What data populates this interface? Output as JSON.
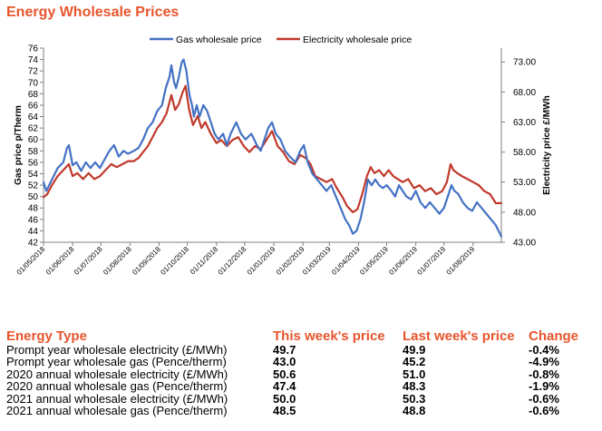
{
  "title": "Energy Wholesale Prices",
  "chart_data": {
    "type": "line",
    "title": "Energy Wholesale Prices",
    "y_left_label": "Gas price p/Therm",
    "y_right_label": "Electricity price £/MWh",
    "y_left_range": [
      42,
      76
    ],
    "y_left_ticks": [
      "42",
      "44",
      "46",
      "48",
      "50",
      "52",
      "54",
      "56",
      "58",
      "60",
      "62",
      "64",
      "66",
      "68",
      "70",
      "72",
      "74",
      "76"
    ],
    "y_right_range": [
      43,
      75.3
    ],
    "y_right_ticks": [
      "43.00",
      "48.00",
      "53.00",
      "58.00",
      "63.00",
      "68.00",
      "73.00"
    ],
    "x_range": [
      "2018-05-01",
      "2019-08-31"
    ],
    "x_ticks": [
      "01/05/2018",
      "01/06/2018",
      "01/07/2018",
      "01/08/2018",
      "01/09/2018",
      "01/10/2018",
      "01/11/2018",
      "01/12/2018",
      "01/01/2019",
      "01/02/2019",
      "01/03/2019",
      "01/04/2019",
      "01/05/2019",
      "01/06/2019",
      "01/07/2019",
      "01/08/2019"
    ],
    "legend_position": "top",
    "grid": false,
    "series": [
      {
        "name": "Gas wholesale price",
        "axis": "left",
        "color": "#4472c4",
        "points": [
          [
            "2018-05-01",
            52.5
          ],
          [
            "2018-05-04",
            51
          ],
          [
            "2018-05-10",
            53
          ],
          [
            "2018-05-16",
            55
          ],
          [
            "2018-05-22",
            56
          ],
          [
            "2018-05-26",
            58.5
          ],
          [
            "2018-05-28",
            59
          ],
          [
            "2018-06-01",
            55.5
          ],
          [
            "2018-06-05",
            56
          ],
          [
            "2018-06-10",
            54.5
          ],
          [
            "2018-06-15",
            56
          ],
          [
            "2018-06-20",
            55
          ],
          [
            "2018-06-25",
            56
          ],
          [
            "2018-06-30",
            55
          ],
          [
            "2018-07-05",
            56.5
          ],
          [
            "2018-07-10",
            58
          ],
          [
            "2018-07-15",
            59
          ],
          [
            "2018-07-20",
            57
          ],
          [
            "2018-07-25",
            58
          ],
          [
            "2018-07-30",
            57.5
          ],
          [
            "2018-08-05",
            58
          ],
          [
            "2018-08-10",
            58.5
          ],
          [
            "2018-08-15",
            60
          ],
          [
            "2018-08-20",
            62
          ],
          [
            "2018-08-25",
            63
          ],
          [
            "2018-08-30",
            65
          ],
          [
            "2018-09-04",
            66
          ],
          [
            "2018-09-08",
            69
          ],
          [
            "2018-09-12",
            71
          ],
          [
            "2018-09-14",
            73
          ],
          [
            "2018-09-17",
            70
          ],
          [
            "2018-09-19",
            69
          ],
          [
            "2018-09-22",
            71
          ],
          [
            "2018-09-25",
            73.5
          ],
          [
            "2018-09-27",
            74
          ],
          [
            "2018-09-30",
            72
          ],
          [
            "2018-10-03",
            68
          ],
          [
            "2018-10-06",
            66
          ],
          [
            "2018-10-08",
            64
          ],
          [
            "2018-10-11",
            66
          ],
          [
            "2018-10-14",
            64
          ],
          [
            "2018-10-18",
            66
          ],
          [
            "2018-10-22",
            65
          ],
          [
            "2018-10-26",
            63
          ],
          [
            "2018-10-30",
            61
          ],
          [
            "2018-11-03",
            60
          ],
          [
            "2018-11-08",
            61
          ],
          [
            "2018-11-12",
            59
          ],
          [
            "2018-11-16",
            61
          ],
          [
            "2018-11-22",
            63
          ],
          [
            "2018-11-27",
            61
          ],
          [
            "2018-12-02",
            60
          ],
          [
            "2018-12-08",
            61
          ],
          [
            "2018-12-14",
            59
          ],
          [
            "2018-12-18",
            58
          ],
          [
            "2018-12-22",
            60
          ],
          [
            "2018-12-26",
            62
          ],
          [
            "2018-12-30",
            63
          ],
          [
            "2019-01-03",
            61
          ],
          [
            "2019-01-08",
            60
          ],
          [
            "2019-01-13",
            58
          ],
          [
            "2019-01-18",
            57
          ],
          [
            "2019-01-24",
            56
          ],
          [
            "2019-01-29",
            58
          ],
          [
            "2019-02-02",
            59
          ],
          [
            "2019-02-06",
            56
          ],
          [
            "2019-02-11",
            54
          ],
          [
            "2019-02-16",
            53
          ],
          [
            "2019-02-21",
            52
          ],
          [
            "2019-02-26",
            51
          ],
          [
            "2019-03-03",
            52
          ],
          [
            "2019-03-08",
            50
          ],
          [
            "2019-03-13",
            48
          ],
          [
            "2019-03-18",
            46
          ],
          [
            "2019-03-22",
            45
          ],
          [
            "2019-03-26",
            43.5
          ],
          [
            "2019-03-30",
            44
          ],
          [
            "2019-04-03",
            46
          ],
          [
            "2019-04-07",
            49
          ],
          [
            "2019-04-11",
            53
          ],
          [
            "2019-04-15",
            52
          ],
          [
            "2019-04-19",
            53
          ],
          [
            "2019-04-23",
            52
          ],
          [
            "2019-04-27",
            51.5
          ],
          [
            "2019-05-01",
            52
          ],
          [
            "2019-05-06",
            51
          ],
          [
            "2019-05-10",
            50
          ],
          [
            "2019-05-14",
            52
          ],
          [
            "2019-05-18",
            51
          ],
          [
            "2019-05-22",
            50
          ],
          [
            "2019-05-27",
            49.5
          ],
          [
            "2019-06-01",
            51
          ],
          [
            "2019-06-06",
            49
          ],
          [
            "2019-06-11",
            48
          ],
          [
            "2019-06-16",
            49
          ],
          [
            "2019-06-21",
            48
          ],
          [
            "2019-06-26",
            47
          ],
          [
            "2019-07-01",
            48
          ],
          [
            "2019-07-05",
            50
          ],
          [
            "2019-07-09",
            52
          ],
          [
            "2019-07-12",
            51
          ],
          [
            "2019-07-16",
            50.5
          ],
          [
            "2019-07-21",
            49
          ],
          [
            "2019-07-26",
            48
          ],
          [
            "2019-07-31",
            47.5
          ],
          [
            "2019-08-05",
            49
          ],
          [
            "2019-08-10",
            48
          ],
          [
            "2019-08-15",
            47
          ],
          [
            "2019-08-20",
            46
          ],
          [
            "2019-08-25",
            45
          ],
          [
            "2019-08-28",
            44
          ],
          [
            "2019-08-31",
            43
          ]
        ]
      },
      {
        "name": "Electricity wholesale price",
        "axis": "right",
        "color": "#c0392b",
        "points": [
          [
            "2018-05-01",
            50.5
          ],
          [
            "2018-05-05",
            51
          ],
          [
            "2018-05-10",
            52.5
          ],
          [
            "2018-05-16",
            54
          ],
          [
            "2018-05-22",
            55
          ],
          [
            "2018-05-28",
            56
          ],
          [
            "2018-06-01",
            54
          ],
          [
            "2018-06-06",
            54.5
          ],
          [
            "2018-06-12",
            53.5
          ],
          [
            "2018-06-18",
            54.5
          ],
          [
            "2018-06-24",
            53.5
          ],
          [
            "2018-06-30",
            54
          ],
          [
            "2018-07-06",
            55
          ],
          [
            "2018-07-12",
            56
          ],
          [
            "2018-07-18",
            55.5
          ],
          [
            "2018-07-24",
            56
          ],
          [
            "2018-07-30",
            56.5
          ],
          [
            "2018-08-05",
            56.5
          ],
          [
            "2018-08-10",
            57
          ],
          [
            "2018-08-15",
            58
          ],
          [
            "2018-08-20",
            59
          ],
          [
            "2018-08-25",
            60.5
          ],
          [
            "2018-08-30",
            62
          ],
          [
            "2018-09-04",
            63
          ],
          [
            "2018-09-09",
            64.5
          ],
          [
            "2018-09-14",
            67.5
          ],
          [
            "2018-09-18",
            65
          ],
          [
            "2018-09-22",
            66
          ],
          [
            "2018-09-26",
            68
          ],
          [
            "2018-09-29",
            69
          ],
          [
            "2018-10-03",
            65
          ],
          [
            "2018-10-07",
            62.5
          ],
          [
            "2018-10-12",
            64
          ],
          [
            "2018-10-16",
            62
          ],
          [
            "2018-10-20",
            63
          ],
          [
            "2018-10-26",
            61
          ],
          [
            "2018-11-01",
            59.5
          ],
          [
            "2018-11-06",
            60
          ],
          [
            "2018-11-12",
            59
          ],
          [
            "2018-11-18",
            60
          ],
          [
            "2018-11-24",
            60.5
          ],
          [
            "2018-11-30",
            59
          ],
          [
            "2018-12-06",
            58
          ],
          [
            "2018-12-12",
            59
          ],
          [
            "2018-12-18",
            58.5
          ],
          [
            "2018-12-24",
            60
          ],
          [
            "2018-12-30",
            61.5
          ],
          [
            "2019-01-05",
            59
          ],
          [
            "2019-01-11",
            58
          ],
          [
            "2019-01-17",
            56.5
          ],
          [
            "2019-01-23",
            56
          ],
          [
            "2019-01-29",
            57.5
          ],
          [
            "2019-02-04",
            57
          ],
          [
            "2019-02-09",
            56
          ],
          [
            "2019-02-14",
            54
          ],
          [
            "2019-02-20",
            53.5
          ],
          [
            "2019-02-26",
            53
          ],
          [
            "2019-03-04",
            53.5
          ],
          [
            "2019-03-09",
            52
          ],
          [
            "2019-03-15",
            50.5
          ],
          [
            "2019-03-20",
            49
          ],
          [
            "2019-03-26",
            48
          ],
          [
            "2019-03-31",
            48.5
          ],
          [
            "2019-04-05",
            51
          ],
          [
            "2019-04-10",
            54
          ],
          [
            "2019-04-14",
            55.5
          ],
          [
            "2019-04-18",
            54.5
          ],
          [
            "2019-04-23",
            55
          ],
          [
            "2019-04-28",
            54
          ],
          [
            "2019-05-03",
            55
          ],
          [
            "2019-05-08",
            54
          ],
          [
            "2019-05-13",
            53.5
          ],
          [
            "2019-05-18",
            53
          ],
          [
            "2019-05-24",
            53.5
          ],
          [
            "2019-05-30",
            52
          ],
          [
            "2019-06-05",
            52.5
          ],
          [
            "2019-06-11",
            51.5
          ],
          [
            "2019-06-17",
            52
          ],
          [
            "2019-06-23",
            51
          ],
          [
            "2019-06-29",
            51.5
          ],
          [
            "2019-07-04",
            53
          ],
          [
            "2019-07-08",
            56
          ],
          [
            "2019-07-11",
            55
          ],
          [
            "2019-07-15",
            54.5
          ],
          [
            "2019-07-20",
            54
          ],
          [
            "2019-07-26",
            53.5
          ],
          [
            "2019-08-01",
            53
          ],
          [
            "2019-08-07",
            52.5
          ],
          [
            "2019-08-13",
            51.5
          ],
          [
            "2019-08-19",
            51
          ],
          [
            "2019-08-25",
            49.5
          ],
          [
            "2019-08-31",
            49.5
          ]
        ]
      }
    ]
  },
  "table": {
    "headers": [
      "Energy Type",
      "This week's price",
      "Last week's price",
      "Change"
    ],
    "rows": [
      [
        "Prompt year wholesale electricity (£/MWh)",
        "49.7",
        "49.9",
        "-0.4%"
      ],
      [
        "Prompt year wholesale gas (Pence/therm)",
        "43.0",
        "45.2",
        "-4.9%"
      ],
      [
        "2020 annual wholesale electricity (£/MWh)",
        "50.6",
        "51.0",
        "-0.8%"
      ],
      [
        "2020 annual wholesale gas (Pence/therm)",
        "47.4",
        "48.3",
        "-1.9%"
      ],
      [
        "2021 annual wholesale electricity (£/MWh)",
        "50.0",
        "50.3",
        "-0.6%"
      ],
      [
        "2021 annual wholesale gas (Pence/therm)",
        "48.5",
        "48.8",
        "-0.6%"
      ]
    ]
  }
}
